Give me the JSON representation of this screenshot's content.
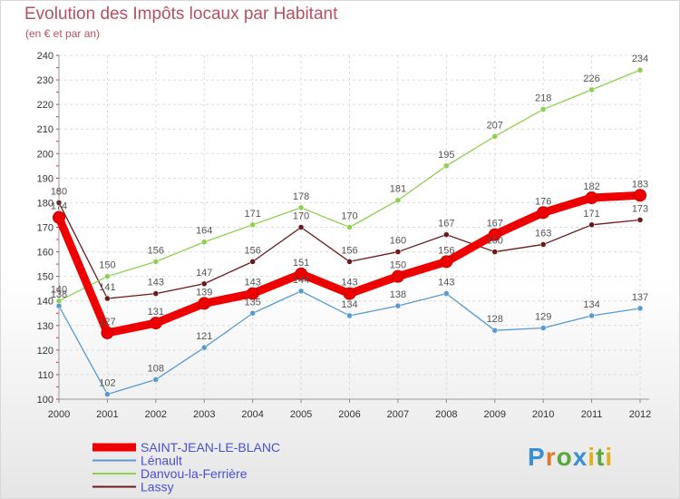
{
  "title": "Evolution des Impôts locaux par Habitant",
  "subtitle": "(en € et par an)",
  "logo_text": "Proxiti",
  "chart_data": {
    "type": "line",
    "title": "Evolution des Impôts locaux par Habitant",
    "ylabel": "(en € et par an)",
    "xlabel": "",
    "x": [
      2000,
      2001,
      2002,
      2003,
      2004,
      2005,
      2006,
      2007,
      2008,
      2009,
      2010,
      2011,
      2012
    ],
    "ylim": [
      100,
      240
    ],
    "yticks": [
      100,
      110,
      120,
      130,
      140,
      150,
      160,
      170,
      180,
      190,
      200,
      210,
      220,
      230,
      240
    ],
    "legend_position": "bottom-left",
    "series": [
      {
        "name": "Lassy",
        "color": "#6b1a1a",
        "values": [
          180,
          141,
          143,
          147,
          156,
          170,
          156,
          160,
          167,
          160,
          163,
          171,
          173
        ]
      },
      {
        "name": "Danvou-la-Ferrière",
        "color": "#8fd050",
        "values": [
          140,
          150,
          156,
          164,
          171,
          178,
          170,
          181,
          195,
          207,
          218,
          226,
          234
        ]
      },
      {
        "name": "Lénault",
        "color": "#5a9ad0",
        "values": [
          138,
          102,
          108,
          121,
          135,
          144,
          134,
          138,
          143,
          128,
          129,
          134,
          137
        ]
      },
      {
        "name": "SAINT-JEAN-LE-BLANC",
        "color": "#ee0000",
        "values": [
          174,
          127,
          131,
          139,
          143,
          151,
          143,
          150,
          156,
          167,
          176,
          182,
          183
        ]
      }
    ],
    "legend_order": [
      "SAINT-JEAN-LE-BLANC",
      "Lénault",
      "Danvou-la-Ferrière",
      "Lassy"
    ]
  }
}
